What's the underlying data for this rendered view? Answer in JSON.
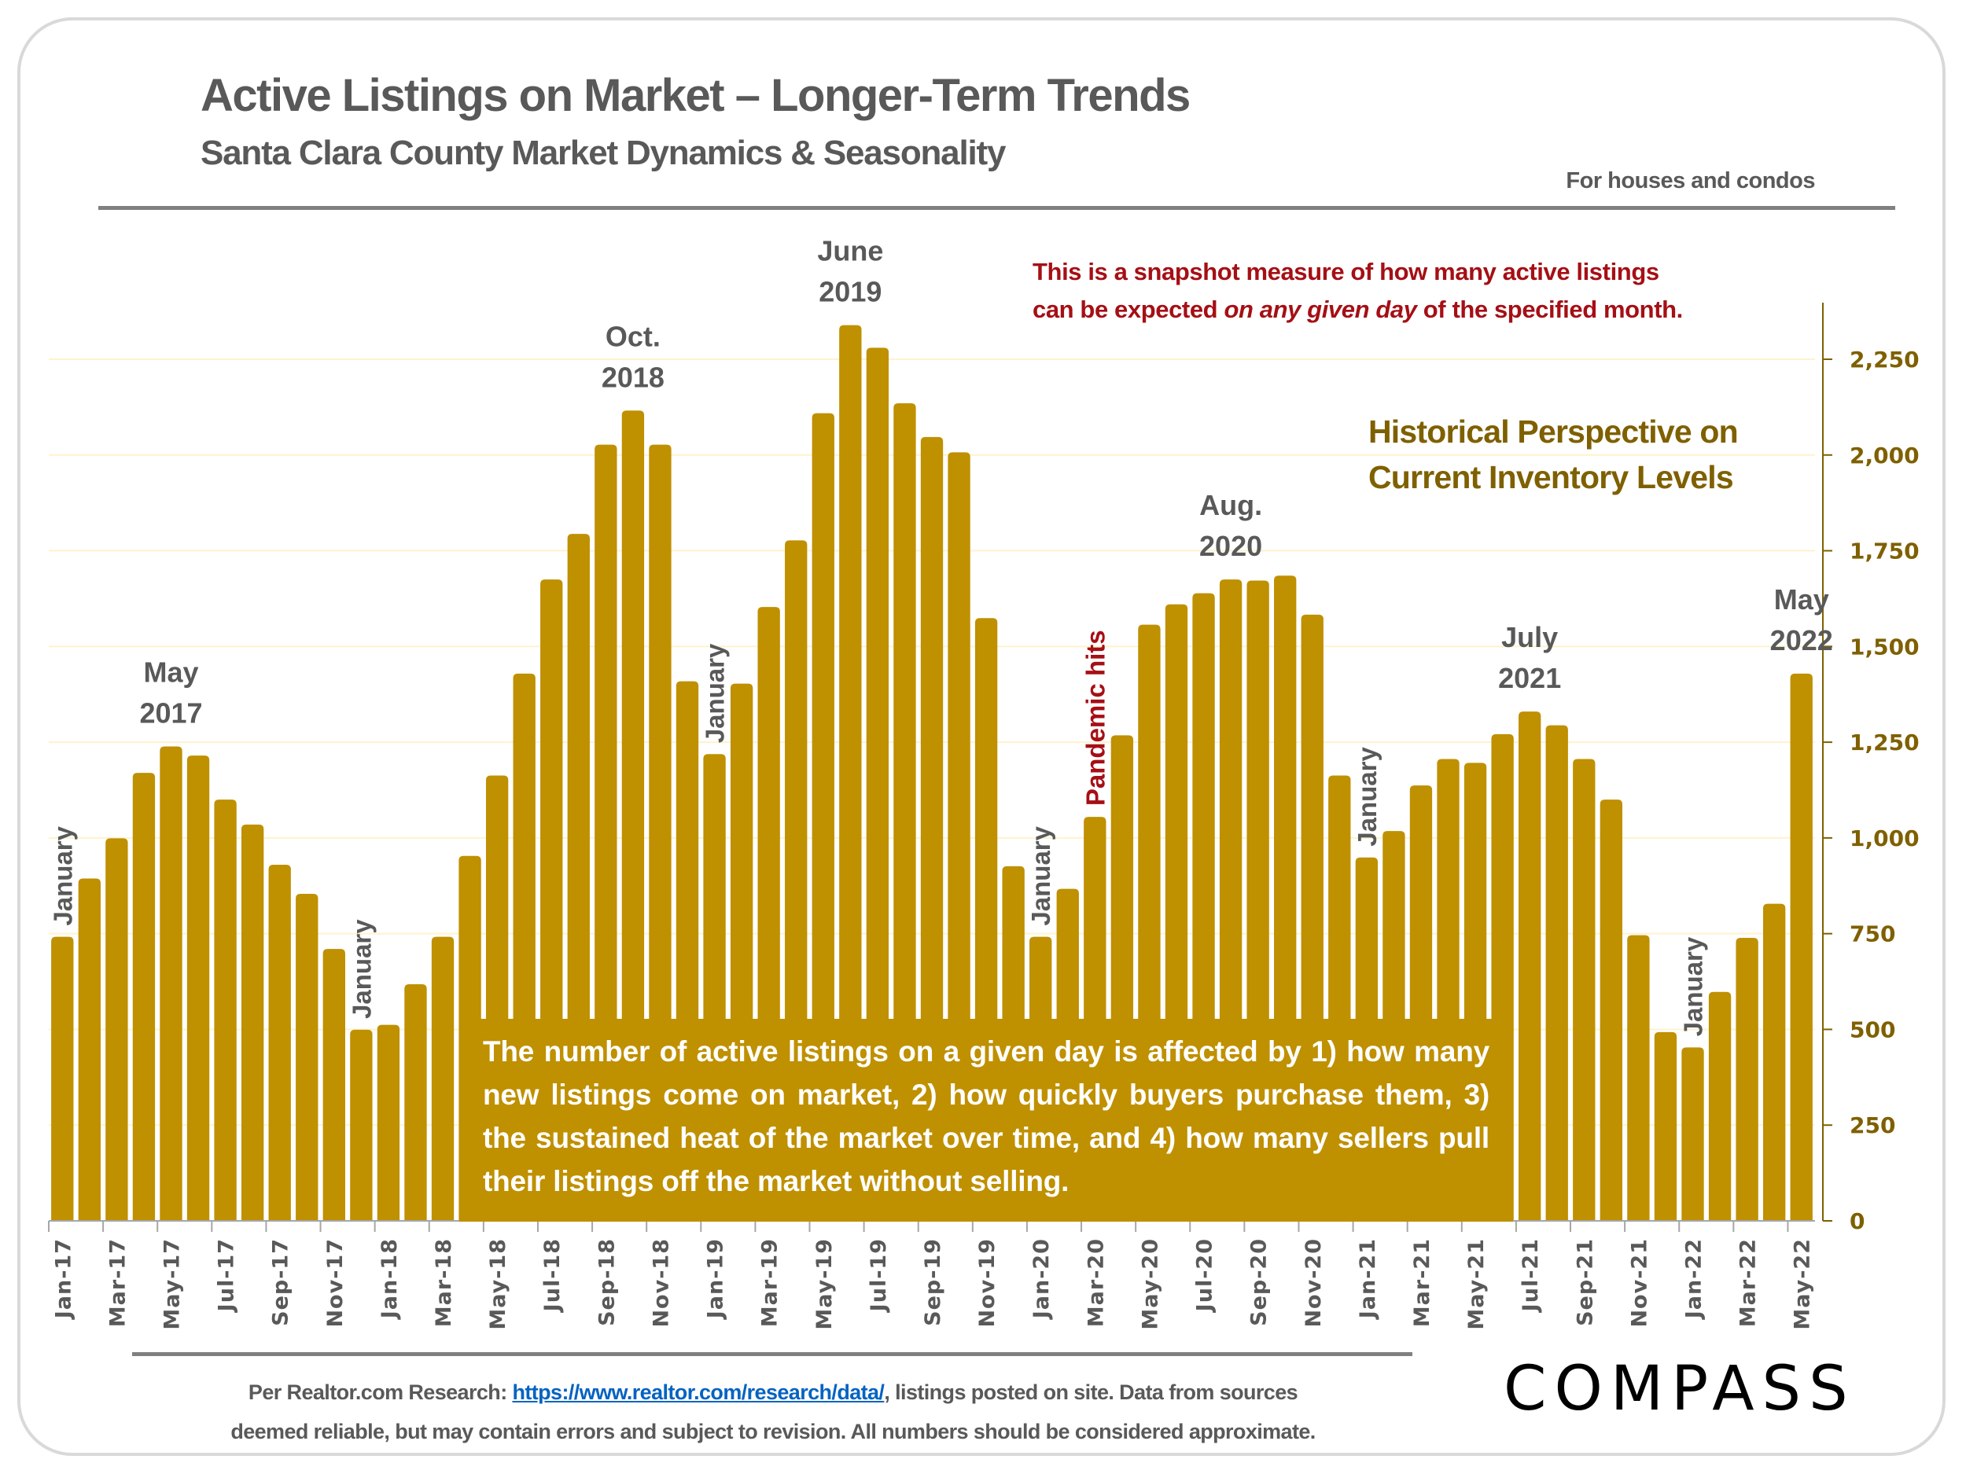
{
  "header": {
    "title": "Active Listings on Market – Longer-Term Trends",
    "subtitle": "Santa Clara County Market Dynamics & Seasonality",
    "scope_note": "For houses and condos"
  },
  "annotations": {
    "snapshot_line1": "This is a snapshot measure of how many active listings",
    "snapshot_line2_pre": "can be expected ",
    "snapshot_line2_em": "on any given day",
    "snapshot_line2_post": " of the specified month.",
    "historical_line1": "Historical Perspective on",
    "historical_line2": "Current Inventory Levels",
    "info_box": "The number of active listings on a given day is affected by 1) how many new listings come on market, 2) how quickly buyers purchase them, 3) the sustained heat of the market over time, and 4) how many sellers pull their listings off the market without selling.",
    "peak_labels": [
      {
        "month_index": 4,
        "line1": "May",
        "line2": "2017"
      },
      {
        "month_index": 21,
        "line1": "Oct.",
        "line2": "2018"
      },
      {
        "month_index": 29,
        "line1": "June",
        "line2": "2019"
      },
      {
        "month_index": 43,
        "line1": "Aug.",
        "line2": "2020"
      },
      {
        "month_index": 54,
        "line1": "July",
        "line2": "2021"
      },
      {
        "month_index": 64,
        "line1": "May",
        "line2": "2022"
      }
    ],
    "vertical_labels": [
      {
        "month_index": 0,
        "text": "January",
        "color": "#595959"
      },
      {
        "month_index": 11,
        "text": "January",
        "color": "#595959"
      },
      {
        "month_index": 24,
        "text": "January",
        "color": "#595959"
      },
      {
        "month_index": 36,
        "text": "January",
        "color": "#595959"
      },
      {
        "month_index": 38,
        "text": "Pandemic hits",
        "color": "#a50f15"
      },
      {
        "month_index": 48,
        "text": "January",
        "color": "#595959"
      },
      {
        "month_index": 60,
        "text": "January",
        "color": "#595959"
      }
    ]
  },
  "footer": {
    "source_pre": "Per Realtor.com Research:  ",
    "source_link": "https://www.realtor.com/research/data/",
    "source_post": ", listings posted on site. Data from sources",
    "source_line2": "deemed reliable, but may contain errors and subject to revision. All numbers should be considered approximate.",
    "logo": "COMPASS"
  },
  "colors": {
    "bar": "#bf9000",
    "axis_text": "#7f6000",
    "label_gray": "#595959",
    "accent_red": "#a50f15",
    "gridline": "#fff2cc"
  },
  "chart_data": {
    "type": "bar",
    "title": "Active Listings on Market – Longer-Term Trends",
    "subtitle": "Santa Clara County Market Dynamics & Seasonality",
    "xlabel": "",
    "ylabel": "Active listings",
    "ylim": [
      0,
      2400
    ],
    "yticks": [
      0,
      250,
      500,
      750,
      1000,
      1250,
      1500,
      1750,
      2000,
      2250
    ],
    "ytick_labels": [
      "0",
      "250",
      "500",
      "750",
      "1,000",
      "1,250",
      "1,500",
      "1,750",
      "2,000",
      "2,250"
    ],
    "y_axis_side": "right",
    "grid": true,
    "legend": "none",
    "categories": [
      "Jan-17",
      "Feb-17",
      "Mar-17",
      "Apr-17",
      "May-17",
      "Jun-17",
      "Jul-17",
      "Aug-17",
      "Sep-17",
      "Oct-17",
      "Nov-17",
      "Dec-17",
      "Jan-18",
      "Feb-18",
      "Mar-18",
      "Apr-18",
      "May-18",
      "Jun-18",
      "Jul-18",
      "Aug-18",
      "Sep-18",
      "Oct-18",
      "Nov-18",
      "Dec-18",
      "Jan-19",
      "Feb-19",
      "Mar-19",
      "Apr-19",
      "May-19",
      "Jun-19",
      "Jul-19",
      "Aug-19",
      "Sep-19",
      "Oct-19",
      "Nov-19",
      "Dec-19",
      "Jan-20",
      "Feb-20",
      "Mar-20",
      "Apr-20",
      "May-20",
      "Jun-20",
      "Jul-20",
      "Aug-20",
      "Sep-20",
      "Oct-20",
      "Nov-20",
      "Dec-20",
      "Jan-21",
      "Feb-21",
      "Mar-21",
      "Apr-21",
      "May-21",
      "Jun-21",
      "Jul-21",
      "Aug-21",
      "Sep-21",
      "Oct-21",
      "Nov-21",
      "Dec-21",
      "Jan-22",
      "Feb-22",
      "Mar-22",
      "Apr-22",
      "May-22"
    ],
    "xtick_labels_shown": [
      "Jan-17",
      "Mar-17",
      "May-17",
      "Jul-17",
      "Sep-17",
      "Nov-17",
      "Jan-18",
      "Mar-18",
      "May-18",
      "Jul-18",
      "Sep-18",
      "Nov-18",
      "Jan-19",
      "Mar-19",
      "May-19",
      "Jul-19",
      "Sep-19",
      "Nov-19",
      "Jan-20",
      "Mar-20",
      "May-20",
      "Jul-20",
      "Sep-20",
      "Nov-20",
      "Jan-21",
      "Mar-21",
      "May-21",
      "Jul-21",
      "Sep-21",
      "Nov-21",
      "Jan-22",
      "Mar-22",
      "May-22"
    ],
    "values": [
      742,
      894,
      999,
      1170,
      1239,
      1215,
      1100,
      1035,
      930,
      854,
      710,
      499,
      512,
      618,
      742,
      953,
      1163,
      1429,
      1675,
      1794,
      2027,
      2116,
      2027,
      1409,
      1219,
      1403,
      1603,
      1777,
      2109,
      2339,
      2280,
      2135,
      2047,
      2007,
      1574,
      926,
      742,
      867,
      1055,
      1268,
      1557,
      1610,
      1639,
      1675,
      1672,
      1685,
      1583,
      1163,
      949,
      1018,
      1137,
      1206,
      1196,
      1271,
      1330,
      1294,
      1206,
      1100,
      746,
      493,
      453,
      598,
      739,
      828,
      1429
    ]
  }
}
